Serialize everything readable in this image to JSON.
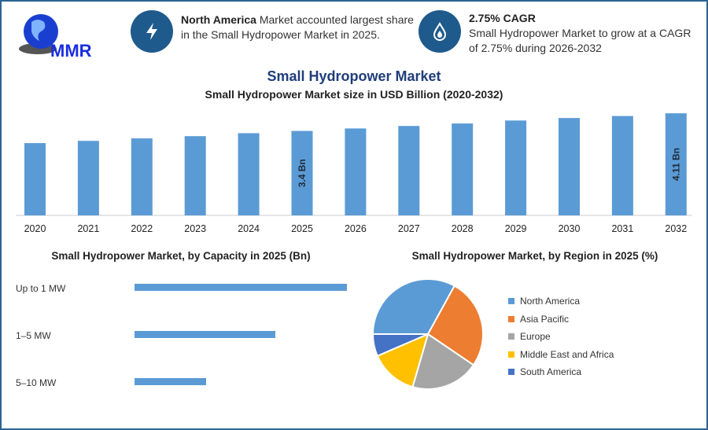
{
  "logo": {
    "text": "MMR"
  },
  "highlights": [
    {
      "icon": "lightning-bolt-icon",
      "bold": "North America",
      "text": " Market accounted largest share in the Small Hydropower Market in 2025."
    },
    {
      "icon": "water-drop-flame-icon",
      "bold": "2.75% CAGR",
      "text": "Small Hydropower Market to grow at a CAGR of 2.75% during 2026-2032"
    }
  ],
  "colors": {
    "accent": "#1f5a8c",
    "title": "#1f3d7a",
    "bar": "#5b9bd5"
  },
  "chart_data": [
    {
      "type": "bar",
      "title": "Small Hydropower Market",
      "subtitle": "Small Hydropower Market size in USD Billion (2020-2032)",
      "categories": [
        "2020",
        "2021",
        "2022",
        "2023",
        "2024",
        "2025",
        "2026",
        "2027",
        "2028",
        "2029",
        "2030",
        "2031",
        "2032"
      ],
      "values": [
        2.91,
        3.0,
        3.1,
        3.19,
        3.31,
        3.4,
        3.5,
        3.6,
        3.7,
        3.82,
        3.92,
        4.0,
        4.11
      ],
      "data_labels": {
        "2025": "3.4 Bn",
        "2032": "4.11 Bn"
      },
      "grid": false
    },
    {
      "type": "bar",
      "orientation": "horizontal",
      "title": "Small Hydropower Market, by Capacity in 2025 (Bn)",
      "categories": [
        "Up to 1 MW",
        "1–5 MW",
        "5–10 MW"
      ],
      "values": [
        1.7,
        1.13,
        0.57
      ]
    },
    {
      "type": "pie",
      "title": "Small Hydropower Market, by Region in 2025 (%)",
      "legend": "right",
      "slices": [
        {
          "label": "North America",
          "value": 33,
          "color": "#5b9bd5"
        },
        {
          "label": "Asia Pacific",
          "value": 26.5,
          "color": "#ed7d31"
        },
        {
          "label": "Europe",
          "value": 20,
          "color": "#a5a5a5"
        },
        {
          "label": "Middle East and Africa",
          "value": 14,
          "color": "#ffc000"
        },
        {
          "label": "South America",
          "value": 6.5,
          "color": "#4472c4"
        }
      ]
    }
  ]
}
